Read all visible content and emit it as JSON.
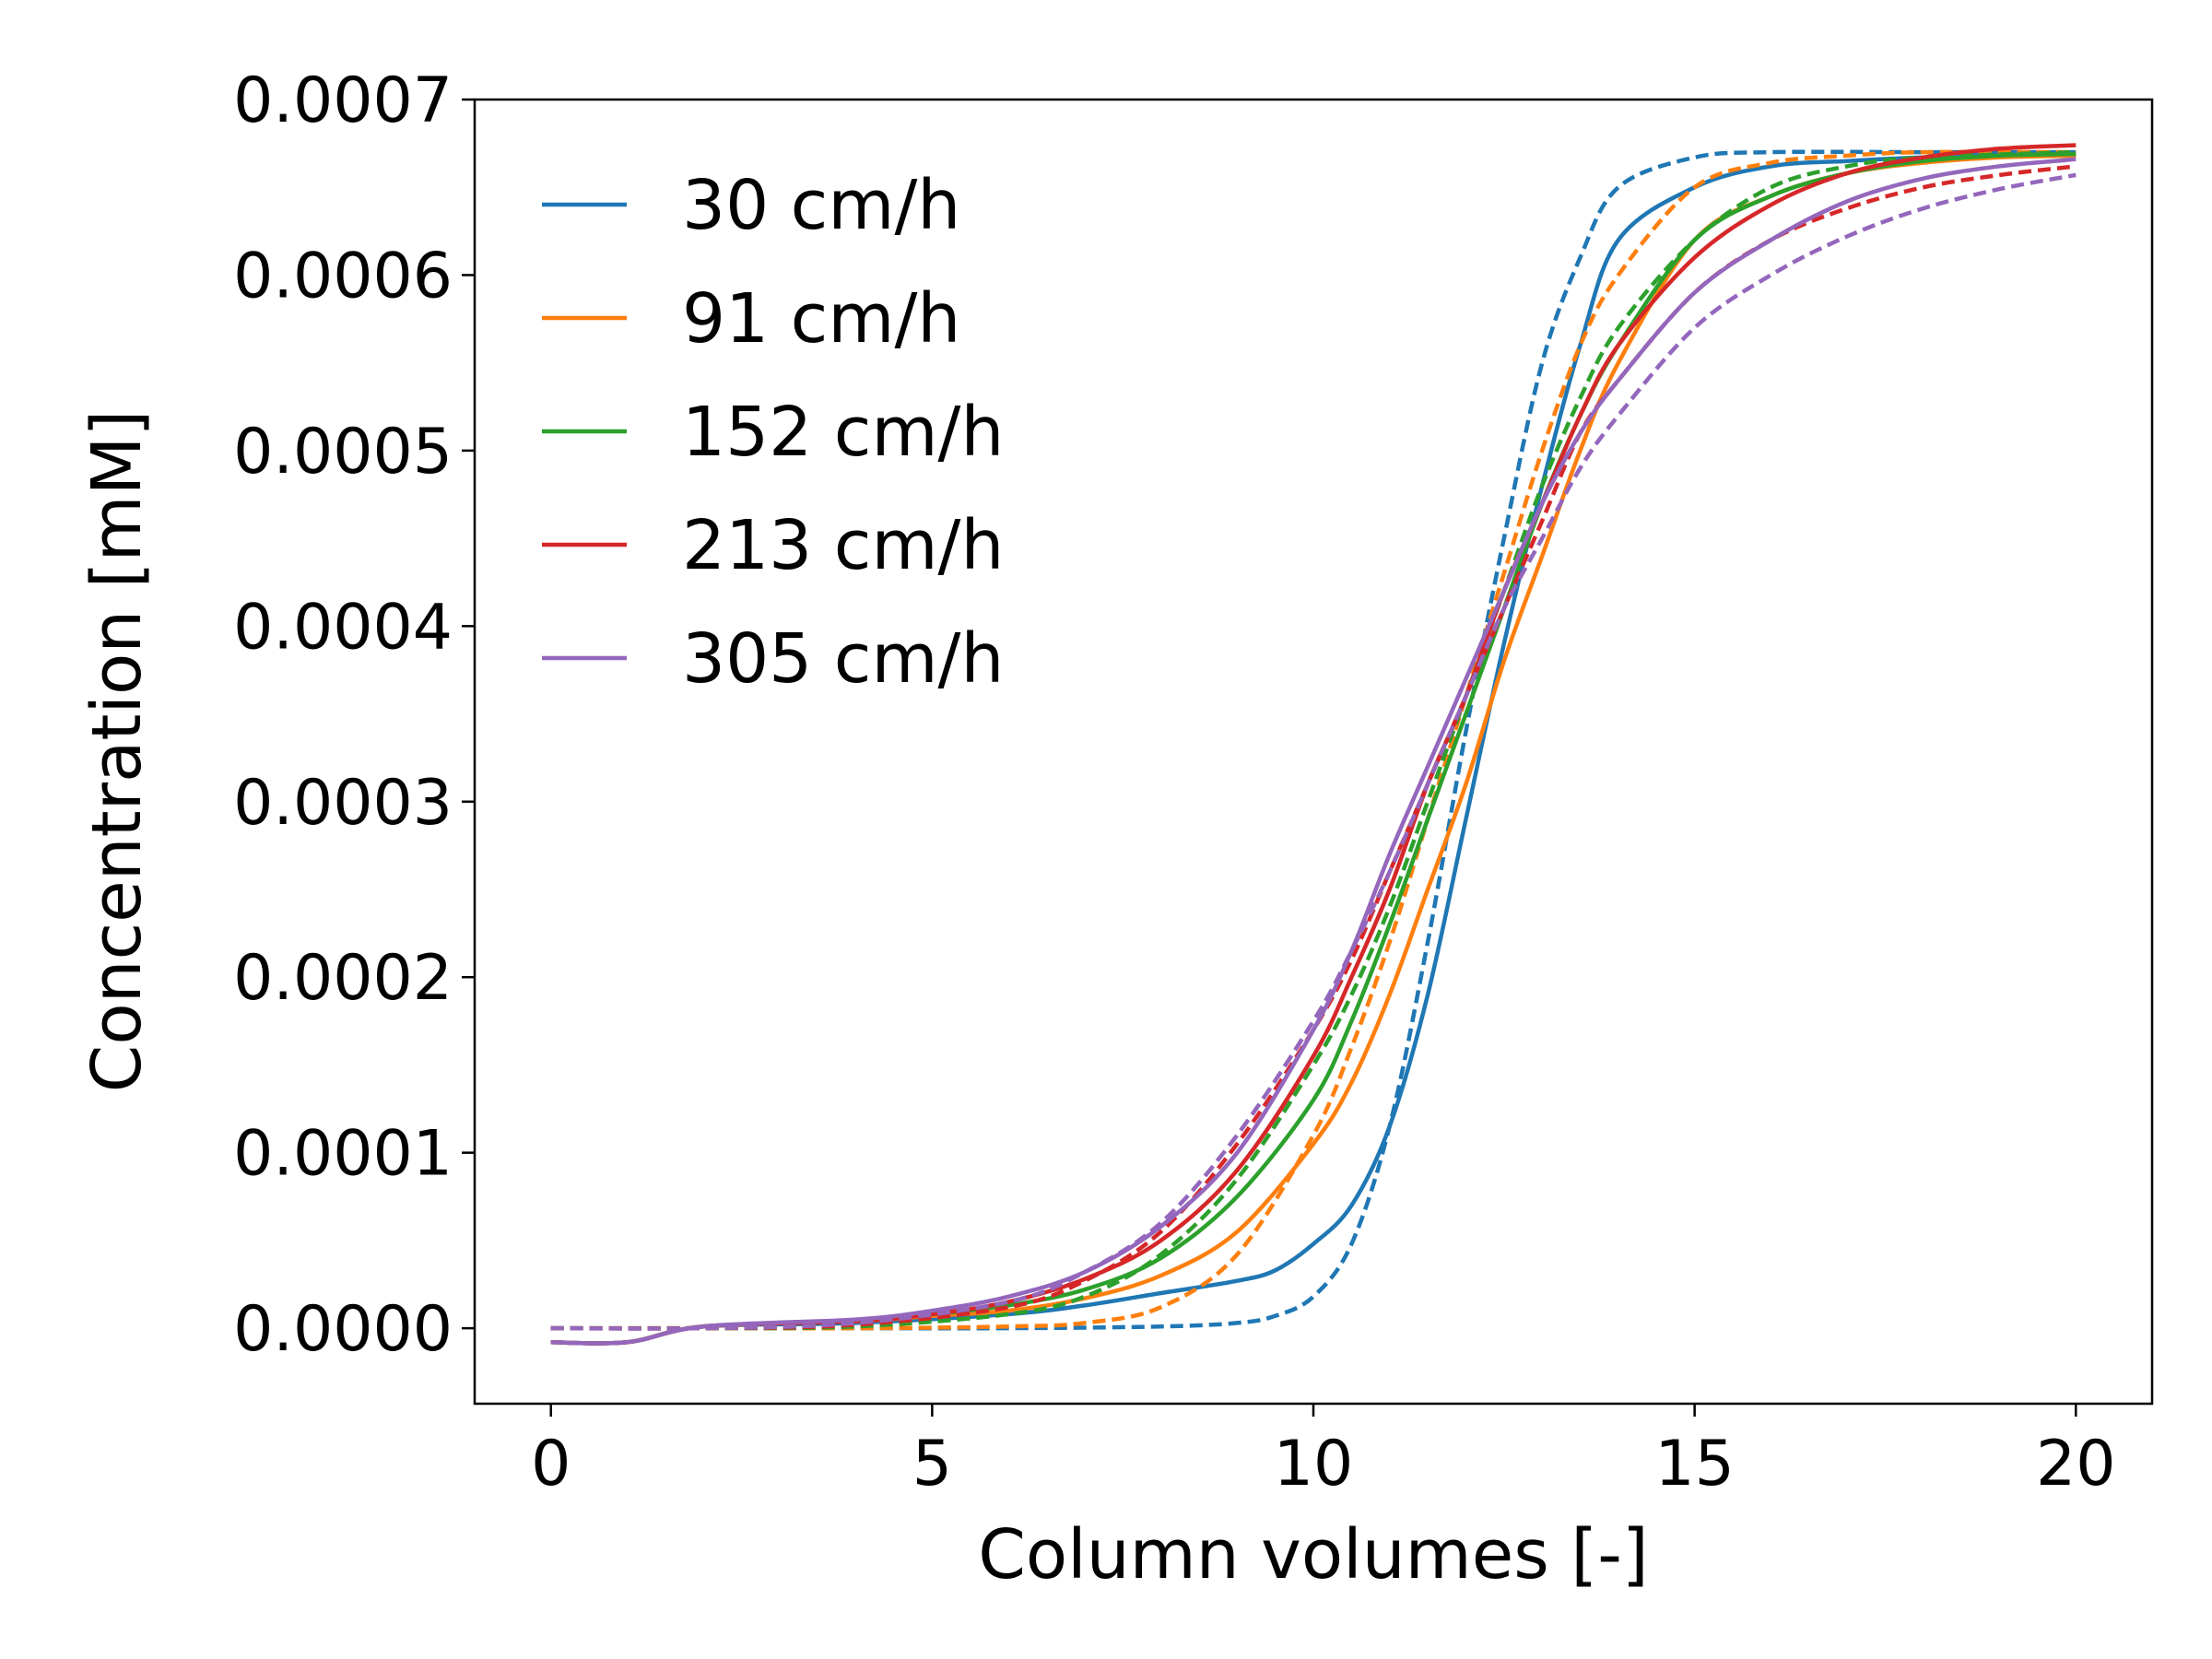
{
  "chart_data": {
    "type": "line",
    "xlabel": "Column volumes [-]",
    "ylabel": "Concentration [mM]",
    "xlim": [
      -1,
      21
    ],
    "ylim": [
      -4.3e-05,
      0.0007
    ],
    "xticks": [
      0,
      5,
      10,
      15,
      20
    ],
    "xtick_labels": [
      "0",
      "5",
      "10",
      "15",
      "20"
    ],
    "yticks": [
      0.0,
      0.0001,
      0.0002,
      0.0003,
      0.0004,
      0.0005,
      0.0006,
      0.0007
    ],
    "ytick_labels": [
      "0.0000",
      "0.0001",
      "0.0002",
      "0.0003",
      "0.0004",
      "0.0005",
      "0.0006",
      "0.0007"
    ],
    "grid": false,
    "legend_position": "top-left",
    "line_styles": {
      "solid": "experiment",
      "dashed": "model"
    },
    "series": [
      {
        "name": "30 cm/h",
        "color": "#1f77b4",
        "experiment": {
          "x": [
            0,
            1,
            2,
            4,
            6,
            7,
            8,
            9,
            9.5,
            10,
            10.5,
            11,
            11.5,
            12,
            12.5,
            13,
            13.5,
            14,
            15,
            16,
            17,
            18,
            19,
            20
          ],
          "y": [
            -8e-06,
            -8e-06,
            1e-06,
            3e-06,
            8e-06,
            1.3e-05,
            2e-05,
            2.7e-05,
            3.3e-05,
            4.8e-05,
            7e-05,
            0.000115,
            0.00019,
            0.00029,
            0.00039,
            0.00048,
            0.00056,
            0.00062,
            0.00065,
            0.000662,
            0.000665,
            0.000667,
            0.000668,
            0.000668
          ]
        },
        "model": {
          "x": [
            0,
            2,
            4,
            6,
            8,
            9,
            9.5,
            10,
            10.5,
            11,
            11.5,
            12,
            12.5,
            13,
            13.5,
            14,
            15,
            16,
            18,
            20
          ],
          "y": [
            0,
            0,
            0,
            0,
            1e-06,
            3e-06,
            7e-06,
            1.8e-05,
            4.8e-05,
            0.000115,
            0.00022,
            0.00034,
            0.00045,
            0.00055,
            0.00061,
            0.00065,
            0.000667,
            0.00067,
            0.00067,
            0.00067
          ]
        }
      },
      {
        "name": "91 cm/h",
        "color": "#ff7f0e",
        "experiment": {
          "x": [
            0,
            1,
            2,
            4,
            5,
            6,
            7,
            8,
            9,
            10,
            10.5,
            11,
            11.5,
            12,
            12.5,
            13,
            13.5,
            14,
            15,
            16,
            17,
            18,
            19,
            20
          ],
          "y": [
            -8e-06,
            -8e-06,
            1e-06,
            4e-06,
            7e-06,
            1e-05,
            1.7e-05,
            3e-05,
            5.5e-05,
            0.000105,
            0.00014,
            0.00019,
            0.00025,
            0.00031,
            0.00038,
            0.00044,
            0.0005,
            0.00055,
            0.00062,
            0.000645,
            0.000658,
            0.000664,
            0.000667,
            0.000668
          ]
        },
        "model": {
          "x": [
            0,
            2,
            4,
            6,
            7,
            8,
            9,
            10,
            10.5,
            11,
            11.5,
            12,
            12.5,
            13,
            13.5,
            14,
            15,
            16,
            17,
            18,
            20
          ],
          "y": [
            0,
            0,
            0,
            1e-06,
            3e-06,
            1.2e-05,
            4.2e-05,
            0.00011,
            0.00016,
            0.00022,
            0.00029,
            0.00036,
            0.00043,
            0.0005,
            0.00056,
            0.0006,
            0.00065,
            0.000664,
            0.000668,
            0.00067,
            0.00067
          ]
        }
      },
      {
        "name": "152 cm/h",
        "color": "#2ca02c",
        "experiment": {
          "x": [
            0,
            1,
            2,
            4,
            5,
            6,
            7,
            8,
            9,
            10,
            10.5,
            11,
            11.5,
            12,
            12.5,
            13,
            13.5,
            14,
            15,
            16,
            17,
            18,
            19,
            20
          ],
          "y": [
            -8e-06,
            -8e-06,
            1e-06,
            4e-06,
            8e-06,
            1.3e-05,
            2.2e-05,
            4e-05,
            7.5e-05,
            0.00013,
            0.000175,
            0.00023,
            0.00029,
            0.00035,
            0.00041,
            0.00047,
            0.00052,
            0.00056,
            0.00062,
            0.000645,
            0.000658,
            0.000665,
            0.000668,
            0.000669
          ]
        },
        "model": {
          "x": [
            0,
            2,
            4,
            6,
            7,
            8,
            9,
            10,
            10.5,
            11,
            11.5,
            12,
            12.5,
            13,
            13.5,
            14,
            15,
            16,
            17,
            18,
            20
          ],
          "y": [
            0,
            0,
            1e-06,
            8e-06,
            1.8e-05,
            4.2e-05,
            8.5e-05,
            0.00015,
            0.00019,
            0.00024,
            0.0003,
            0.00036,
            0.00042,
            0.00048,
            0.00053,
            0.00057,
            0.00062,
            0.00065,
            0.000662,
            0.000667,
            0.00067
          ]
        }
      },
      {
        "name": "213 cm/h",
        "color": "#d62728",
        "experiment": {
          "x": [
            0,
            1,
            2,
            4,
            5,
            6,
            7,
            8,
            9,
            10,
            10.5,
            11,
            11.5,
            12,
            12.5,
            13,
            13.5,
            14,
            15,
            16,
            17,
            18,
            19,
            20
          ],
          "y": [
            -8e-06,
            -8e-06,
            1e-06,
            4e-06,
            8e-06,
            1.5e-05,
            2.8e-05,
            5e-05,
            9e-05,
            0.000155,
            0.0002,
            0.00025,
            0.00031,
            0.00036,
            0.00042,
            0.00047,
            0.00052,
            0.00056,
            0.00061,
            0.00064,
            0.000658,
            0.000667,
            0.000672,
            0.000674
          ]
        },
        "model": {
          "x": [
            0,
            2,
            4,
            6,
            7,
            8,
            9,
            10,
            10.5,
            11,
            11.5,
            12,
            12.5,
            13,
            13.5,
            14,
            15,
            16,
            17,
            18,
            19,
            20
          ],
          "y": [
            0,
            0,
            2e-06,
            1.2e-05,
            2.7e-05,
            5.5e-05,
            0.000105,
            0.00017,
            0.00021,
            0.00026,
            0.00031,
            0.00036,
            0.00041,
            0.00046,
            0.00051,
            0.00054,
            0.00059,
            0.00062,
            0.000638,
            0.00065,
            0.000657,
            0.000662
          ]
        }
      },
      {
        "name": "305 cm/h",
        "color": "#9467bd",
        "experiment": {
          "x": [
            0,
            1,
            2,
            4,
            5,
            6,
            7,
            8,
            9,
            10,
            10.5,
            11,
            11.5,
            12,
            12.5,
            13,
            13.5,
            14,
            15,
            16,
            17,
            18,
            19,
            20
          ],
          "y": [
            -8e-06,
            -8e-06,
            1e-06,
            5e-06,
            1e-05,
            1.8e-05,
            3.2e-05,
            5.8e-05,
            0.0001,
            0.00017,
            0.000215,
            0.00027,
            0.00032,
            0.00037,
            0.00042,
            0.00047,
            0.00051,
            0.00054,
            0.00059,
            0.00062,
            0.000642,
            0.000655,
            0.000662,
            0.000666
          ]
        },
        "model": {
          "x": [
            0,
            2,
            4,
            6,
            7,
            8,
            9,
            10,
            10.5,
            11,
            11.5,
            12,
            12.5,
            13,
            13.5,
            14,
            15,
            16,
            17,
            18,
            19,
            20
          ],
          "y": [
            0,
            0,
            3e-06,
            1.5e-05,
            3.2e-05,
            6e-05,
            0.00011,
            0.000175,
            0.000215,
            0.00026,
            0.00031,
            0.00036,
            0.00041,
            0.00045,
            0.00049,
            0.00052,
            0.00057,
            0.0006,
            0.000622,
            0.000638,
            0.000649,
            0.000657
          ]
        }
      }
    ]
  }
}
